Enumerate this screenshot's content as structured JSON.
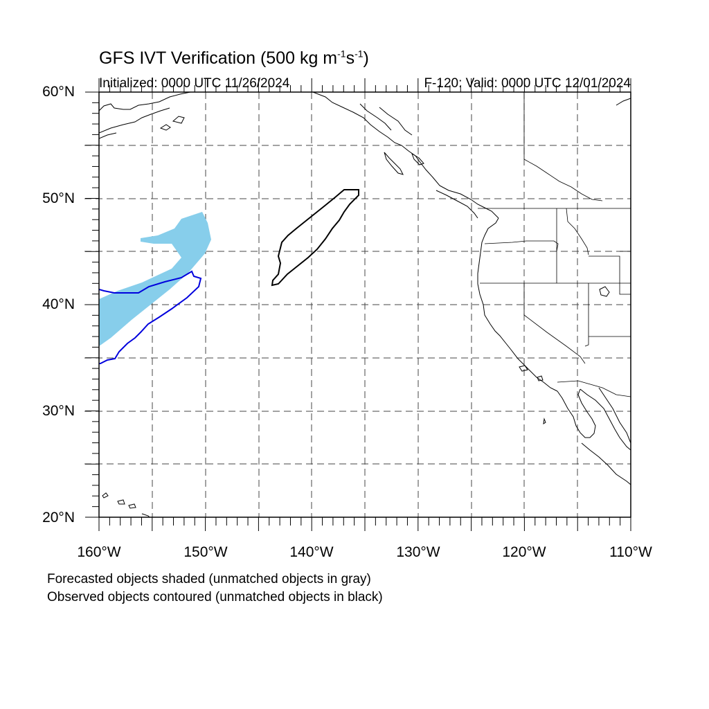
{
  "title": {
    "main": "GFS IVT Verification (500 kg m",
    "sup1": "-1",
    "mid": "s",
    "sup2": "-1",
    "end": ")"
  },
  "initialized": "Initialized: 0000 UTC 11/26/2024",
  "valid": "F-120: Valid: 0000 UTC 12/01/2024",
  "lat_labels": [
    "60°N",
    "50°N",
    "40°N",
    "30°N",
    "20°N"
  ],
  "lon_labels": [
    "160°W",
    "150°W",
    "140°W",
    "130°W",
    "120°W",
    "110°W"
  ],
  "footnote_1": "Forecasted objects shaded (unmatched objects in gray)",
  "footnote_2": "Observed objects contoured (unmatched objects in black)",
  "colors": {
    "forecast_matched": "#87ceeb",
    "observed_matched": "#0000dd",
    "observed_unmatched": "#000000"
  }
}
